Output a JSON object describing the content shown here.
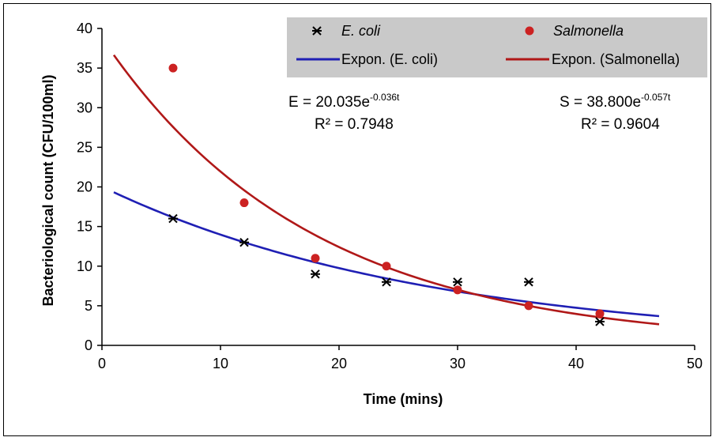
{
  "chart_data": {
    "type": "scatter",
    "xlabel": "Time (mins)",
    "ylabel": "Bacteriological count (CFU/100ml)",
    "xlim": [
      0,
      50
    ],
    "ylim": [
      0,
      40
    ],
    "x_ticks": [
      0,
      10,
      20,
      30,
      40,
      50
    ],
    "y_ticks": [
      0,
      5,
      10,
      15,
      20,
      25,
      30,
      35,
      40
    ],
    "grid": false,
    "legend_position": "top-right",
    "series": [
      {
        "name": "E. coli",
        "marker": "asterisk",
        "color": "#000000",
        "points": [
          [
            6,
            16
          ],
          [
            12,
            13
          ],
          [
            18,
            9
          ],
          [
            24,
            8
          ],
          [
            30,
            8
          ],
          [
            36,
            8
          ],
          [
            42,
            3
          ]
        ]
      },
      {
        "name": "Salmonella",
        "marker": "circle",
        "color": "#cc2222",
        "points": [
          [
            6,
            35
          ],
          [
            12,
            18
          ],
          [
            18,
            11
          ],
          [
            24,
            10
          ],
          [
            30,
            7
          ],
          [
            36,
            5
          ],
          [
            42,
            4
          ]
        ]
      }
    ],
    "trendlines": [
      {
        "name": "Expon. (E. coli)",
        "color": "#1f1fb4",
        "type": "exponential",
        "a": 20.035,
        "b": -0.036,
        "x_range": [
          1,
          47
        ],
        "equation_lhs": "E = 20.035e",
        "equation_exp": "-0.036t",
        "r2": "R² = 0.7948"
      },
      {
        "name": "Expon. (Salmonella)",
        "color": "#b01818",
        "type": "exponential",
        "a": 38.8,
        "b": -0.057,
        "x_range": [
          1,
          47
        ],
        "equation_lhs": "S = 38.800e",
        "equation_exp": "-0.057t",
        "r2": "R² = 0.9604"
      }
    ]
  }
}
